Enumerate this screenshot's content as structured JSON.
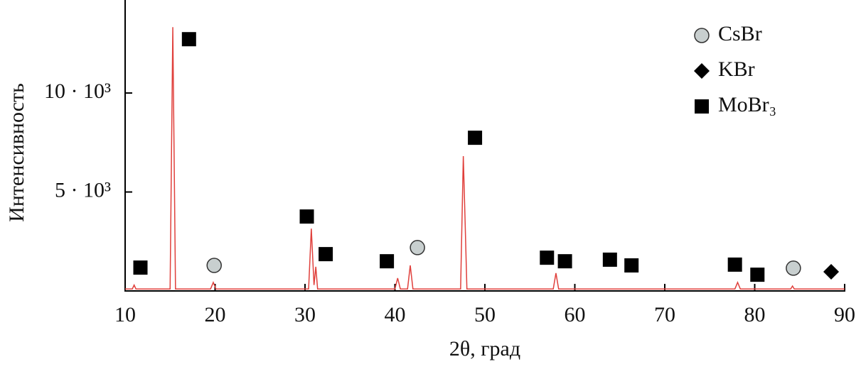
{
  "chart_data": {
    "type": "line",
    "x_label": "2θ, град",
    "y_label": "Интенсивность",
    "x": [
      10,
      10.8,
      11,
      11.2,
      15.0,
      15.3,
      15.6,
      19.5,
      19.8,
      20.1,
      30.4,
      30.7,
      31.0,
      31.2,
      31.4,
      40.0,
      40.3,
      40.6,
      41.4,
      41.7,
      42.0,
      47.3,
      47.6,
      47.8,
      48.0,
      57.6,
      57.9,
      58.2,
      77.8,
      78.1,
      78.4,
      84.0,
      84.2,
      84.4,
      90
    ],
    "values": [
      100,
      100,
      300,
      100,
      100,
      13330,
      100,
      100,
      430,
      100,
      100,
      3150,
      300,
      1220,
      100,
      100,
      650,
      100,
      100,
      1290,
      100,
      100,
      6810,
      3510,
      100,
      100,
      900,
      100,
      100,
      430,
      100,
      100,
      250,
      100,
      100
    ],
    "color": "#e0403c",
    "markers": [
      {
        "name": "CsBr",
        "shape": "circle",
        "color": "#c8cfcf",
        "x": [
          19.9,
          42.5,
          84.3
        ],
        "values": [
          1290,
          2190,
          1150
        ]
      },
      {
        "name": "KBr",
        "shape": "diamond",
        "color": "#000000",
        "x": [
          88.5
        ],
        "values": [
          970
        ]
      },
      {
        "name": "MoBr₃",
        "shape": "square",
        "color": "#000000",
        "x": [
          11.7,
          17.1,
          30.2,
          32.3,
          39.1,
          48.9,
          56.9,
          58.9,
          63.9,
          66.3,
          77.8,
          80.3
        ],
        "values": [
          1180,
          12720,
          3760,
          1860,
          1500,
          7740,
          1680,
          1500,
          1580,
          1290,
          1330,
          820
        ]
      }
    ],
    "xlim": [
      10,
      90
    ],
    "xticks": [
      10,
      20,
      30,
      40,
      50,
      60,
      70,
      80,
      90
    ],
    "ylim": [
      0,
      14700
    ],
    "yticks": [
      {
        "value": 5000,
        "label": "5 · 10³"
      },
      {
        "value": 10000,
        "label": "10 · 10³"
      }
    ],
    "legend": "upper right"
  }
}
